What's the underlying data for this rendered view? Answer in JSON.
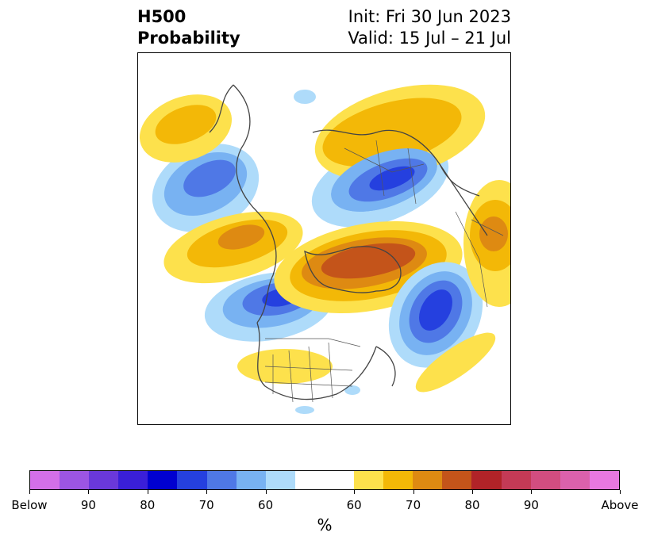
{
  "header": {
    "title_line1": "H500",
    "title_line2": "Probability",
    "init_text": "Init: Fri 30 Jun 2023",
    "valid_text": "Valid: 15 Jul – 21 Jul"
  },
  "colorbar": {
    "unit_label": "%",
    "segments": [
      {
        "category": "below-max",
        "color": "#d36fe8"
      },
      {
        "category": "below-90",
        "color": "#9c55e3"
      },
      {
        "category": "below-85",
        "color": "#6a38da"
      },
      {
        "category": "below-80",
        "color": "#3a1fd8"
      },
      {
        "category": "below-75",
        "color": "#0000d0"
      },
      {
        "category": "below-70",
        "color": "#2540df"
      },
      {
        "category": "below-65",
        "color": "#4f78e6"
      },
      {
        "category": "below-60",
        "color": "#78b2f2"
      },
      {
        "category": "below-55",
        "color": "#aedbfa"
      },
      {
        "category": "neutral",
        "color": "#ffffff"
      },
      {
        "category": "above-55",
        "color": "#fde14c"
      },
      {
        "category": "above-60",
        "color": "#f3b807"
      },
      {
        "category": "above-65",
        "color": "#de8a12"
      },
      {
        "category": "above-70",
        "color": "#c4541a"
      },
      {
        "category": "above-75",
        "color": "#b12328"
      },
      {
        "category": "above-80",
        "color": "#c43a56"
      },
      {
        "category": "above-85",
        "color": "#d24d80"
      },
      {
        "category": "above-90",
        "color": "#db61ac"
      },
      {
        "category": "above-max",
        "color": "#e878e0"
      }
    ],
    "tick_labels": [
      "Below",
      "90",
      "80",
      "70",
      "60",
      "60",
      "70",
      "80",
      "90",
      "Above"
    ]
  },
  "map": {
    "projection": "north-polar-stereographic",
    "features": [
      "coastlines",
      "country-borders",
      "us-state-borders"
    ],
    "anomaly_regions": [
      {
        "region": "western-north-pacific",
        "sign": "below",
        "peak": "70"
      },
      {
        "region": "eastern-north-pacific",
        "sign": "below",
        "peak": "75"
      },
      {
        "region": "north-atlantic",
        "sign": "below",
        "peak": "75"
      },
      {
        "region": "siberia",
        "sign": "below",
        "peak": "70"
      },
      {
        "region": "greenland-arctic",
        "sign": "above",
        "peak": "70"
      },
      {
        "region": "central-united-states",
        "sign": "above",
        "peak": "55"
      },
      {
        "region": "scandinavia-europe",
        "sign": "above",
        "peak": "65"
      },
      {
        "region": "western-pacific-asia",
        "sign": "above",
        "peak": "60"
      }
    ]
  }
}
